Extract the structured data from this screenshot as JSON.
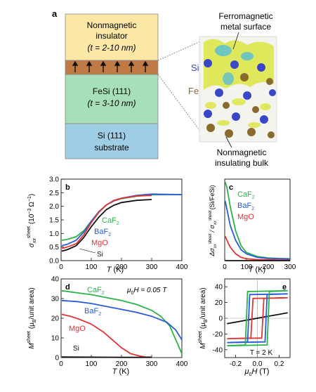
{
  "panel_a": {
    "label": "a",
    "layers": [
      {
        "lines": [
          "Nonmagnetic",
          "insulator",
          "(t = 2-10 nm)"
        ],
        "color": "#fbe8a6"
      },
      {
        "lines": [],
        "color": "#c07a45"
      },
      {
        "lines": [
          "FeSi (111)",
          "(t = 3-10 nm)"
        ],
        "color": "#a7dfb8"
      },
      {
        "lines": [
          "Si (111)",
          "substrate"
        ],
        "color": "#9fcde6"
      }
    ],
    "top_annotation": [
      "Ferromagnetic",
      "metal surface"
    ],
    "bottom_annotation": [
      "Nonmagnetic",
      "insulating bulk"
    ],
    "atom_labels": {
      "si": "Si",
      "fe": "Fe"
    },
    "colors": {
      "si_atom": "#3a46c8",
      "fe_atom": "#8b6a2e",
      "isosurface": "#dde64a",
      "surface_spin": "#5bbfd0"
    }
  },
  "chart_data": [
    {
      "panel": "b",
      "type": "line",
      "xlabel": "T (K)",
      "ylabel": "σxx sheet (10^-3 Ω^-1)",
      "xlim": [
        0,
        400
      ],
      "ylim": [
        0,
        3.0
      ],
      "xticks": [
        0,
        100,
        200,
        300,
        400
      ],
      "yticks": [
        0.0,
        0.5,
        1.0,
        1.5,
        2.0,
        2.5,
        3.0
      ],
      "series": [
        {
          "name": "CaF2",
          "color": "#2bb34a",
          "x": [
            2,
            20,
            50,
            75,
            100,
            125,
            150,
            175,
            200,
            250,
            300,
            350,
            400
          ],
          "y": [
            0.75,
            0.78,
            0.88,
            1.1,
            1.45,
            1.8,
            2.05,
            2.2,
            2.28,
            2.37,
            2.42,
            2.43,
            2.43
          ]
        },
        {
          "name": "BaF2",
          "color": "#2b5bd7",
          "x": [
            2,
            20,
            50,
            75,
            100,
            125,
            150,
            175,
            200,
            250,
            300,
            350,
            400
          ],
          "y": [
            0.55,
            0.6,
            0.75,
            1.05,
            1.45,
            1.8,
            2.05,
            2.2,
            2.3,
            2.4,
            2.45,
            2.44,
            2.43
          ]
        },
        {
          "name": "MgO",
          "color": "#e23434",
          "x": [
            2,
            20,
            50,
            75,
            100,
            125,
            150,
            175,
            200,
            250,
            300
          ],
          "y": [
            0.45,
            0.5,
            0.62,
            0.95,
            1.4,
            1.78,
            2.05,
            2.22,
            2.3,
            2.38,
            2.4
          ]
        },
        {
          "name": "Si",
          "color": "#111111",
          "x": [
            2,
            20,
            50,
            75,
            100,
            125,
            150,
            175,
            200,
            250,
            300
          ],
          "y": [
            0.35,
            0.4,
            0.55,
            0.85,
            1.25,
            1.6,
            1.88,
            2.04,
            2.14,
            2.22,
            2.25
          ]
        }
      ]
    },
    {
      "panel": "c",
      "type": "line",
      "xlabel": "T (K)",
      "ylabel": "Δσxx sheet / σxx sheet (Si/FeSi)",
      "xlim": [
        0,
        300
      ],
      "ylim": [
        0,
        3.0
      ],
      "xticks": [
        0,
        100,
        200,
        300
      ],
      "series": [
        {
          "name": "CaF2",
          "color": "#2bb34a",
          "x": [
            2,
            10,
            25,
            50,
            75,
            100,
            150,
            200,
            250,
            300
          ],
          "y": [
            2.9,
            2.7,
            2.0,
            1.1,
            0.55,
            0.3,
            0.15,
            0.1,
            0.08,
            0.07
          ]
        },
        {
          "name": "BaF2",
          "color": "#2b5bd7",
          "x": [
            2,
            10,
            25,
            50,
            75,
            100,
            150,
            200,
            250,
            300
          ],
          "y": [
            2.2,
            1.9,
            1.3,
            0.75,
            0.4,
            0.25,
            0.12,
            0.08,
            0.07,
            0.06
          ]
        },
        {
          "name": "MgO",
          "color": "#e23434",
          "x": [
            2,
            10,
            25,
            50,
            75,
            100,
            150,
            200,
            250,
            300
          ],
          "y": [
            0.9,
            0.75,
            0.5,
            0.25,
            0.12,
            0.07,
            0.04,
            0.03,
            0.02,
            0.02
          ]
        },
        {
          "name": "",
          "color": "#111111",
          "x": [
            2,
            300
          ],
          "y": [
            0.0,
            0.0
          ]
        }
      ]
    },
    {
      "panel": "d",
      "type": "line",
      "xlabel": "T (K)",
      "ylabel": "M sheet (μB/unit area)",
      "annotation": "μ0H = 0.05 T",
      "xlim": [
        0,
        400
      ],
      "ylim": [
        0,
        40
      ],
      "xticks": [
        0,
        100,
        200,
        300,
        400
      ],
      "yticks": [
        0,
        10,
        20,
        30,
        40
      ],
      "series": [
        {
          "name": "CaF2",
          "color": "#2bb34a",
          "x": [
            2,
            50,
            100,
            150,
            200,
            250,
            300,
            330,
            360,
            380,
            400
          ],
          "y": [
            34,
            33,
            32,
            30.5,
            29,
            27,
            24,
            21,
            16,
            9,
            2
          ]
        },
        {
          "name": "BaF2",
          "color": "#2b5bd7",
          "x": [
            2,
            50,
            100,
            150,
            200,
            250,
            300,
            350,
            380,
            400
          ],
          "y": [
            29,
            28.5,
            27.5,
            26,
            24.5,
            23,
            21,
            18,
            14,
            9
          ]
        },
        {
          "name": "MgO",
          "color": "#e23434",
          "x": [
            2,
            30,
            60,
            100,
            140,
            170,
            200,
            230,
            260,
            280,
            300
          ],
          "y": [
            22,
            21,
            19.5,
            17,
            13,
            9,
            5,
            2,
            0.8,
            0.3,
            0.2
          ]
        },
        {
          "name": "Si",
          "color": "#111111",
          "x": [
            2,
            100,
            200,
            300
          ],
          "y": [
            0.3,
            0.2,
            0.1,
            0.1
          ]
        }
      ]
    },
    {
      "panel": "e",
      "type": "line",
      "xlabel": "μ0H (T)",
      "ylabel": "M sheet (μB/unit area)",
      "annotation": "T = 2 K",
      "xlim": [
        -0.3,
        0.3
      ],
      "ylim": [
        -50,
        50
      ],
      "xticks": [
        -0.2,
        0.0,
        0.2
      ],
      "yticks": [
        -40,
        -20,
        0,
        20,
        40
      ],
      "series": [
        {
          "name": "CaF2",
          "color": "#2bb34a",
          "coercive_field": 0.1,
          "saturation": 35
        },
        {
          "name": "BaF2",
          "color": "#2b5bd7",
          "coercive_field": 0.08,
          "saturation": 31
        },
        {
          "name": "MgO",
          "color": "#e23434",
          "coercive_field": 0.05,
          "saturation": 26
        },
        {
          "name": "Si",
          "color": "#111111",
          "coercive_field": 0.0,
          "saturation": 7
        }
      ]
    }
  ],
  "labels": {
    "b": {
      "panel": "b",
      "ylabel_main": "σ",
      "ylabel_sub": "xx",
      "ylabel_sup": "sheet",
      "ylabel_unit": "(10",
      "ylabel_exp": "−3",
      "ylabel_unit2": "Ω",
      "ylabel_exp2": "−1",
      "ylabel_close": ")",
      "xlabel_T": "T",
      "xlabel_unit": "(K)",
      "series_ca": "CaF",
      "series_ba": "BaF",
      "series_mg": "MgO",
      "series_si": "Si",
      "sub2": "2"
    },
    "c": {
      "panel": "c",
      "ylabel_delta": "Δσ",
      "ylabel_sub": "xx",
      "ylabel_sup": "sheet",
      "ylabel_slash": "/ σ",
      "ylabel_sub2": "xx",
      "ylabel_sup2": "sheet",
      "ylabel_tail": "(Si/FeSi)",
      "xlabel_T": "T",
      "xlabel_unit": "(K)",
      "series_ca": "CaF",
      "series_ba": "BaF",
      "series_mg": "MgO",
      "sub2": "2"
    },
    "d": {
      "panel": "d",
      "ylabel_M": "M",
      "ylabel_sup": "sheet",
      "ylabel_unit": "(μ",
      "ylabel_sub": "B",
      "ylabel_tail": "/unit area)",
      "xlabel_T": "T",
      "xlabel_unit": "(K)",
      "annot_mu": "μ",
      "annot_sub": "0",
      "annot_tail": "H = 0.05 T",
      "series_ca": "CaF",
      "series_ba": "BaF",
      "series_mg": "MgO",
      "series_si": "Si",
      "sub2": "2"
    },
    "e": {
      "panel": "e",
      "ylabel_M": "M",
      "ylabel_sup": "sheet",
      "ylabel_unit": "(μ",
      "ylabel_sub": "B",
      "ylabel_tail": "/unit area)",
      "xlabel_mu": "μ",
      "xlabel_sub": "0",
      "xlabel_H": "H",
      "xlabel_unit": "(T)",
      "annot": "T = 2 K"
    }
  }
}
